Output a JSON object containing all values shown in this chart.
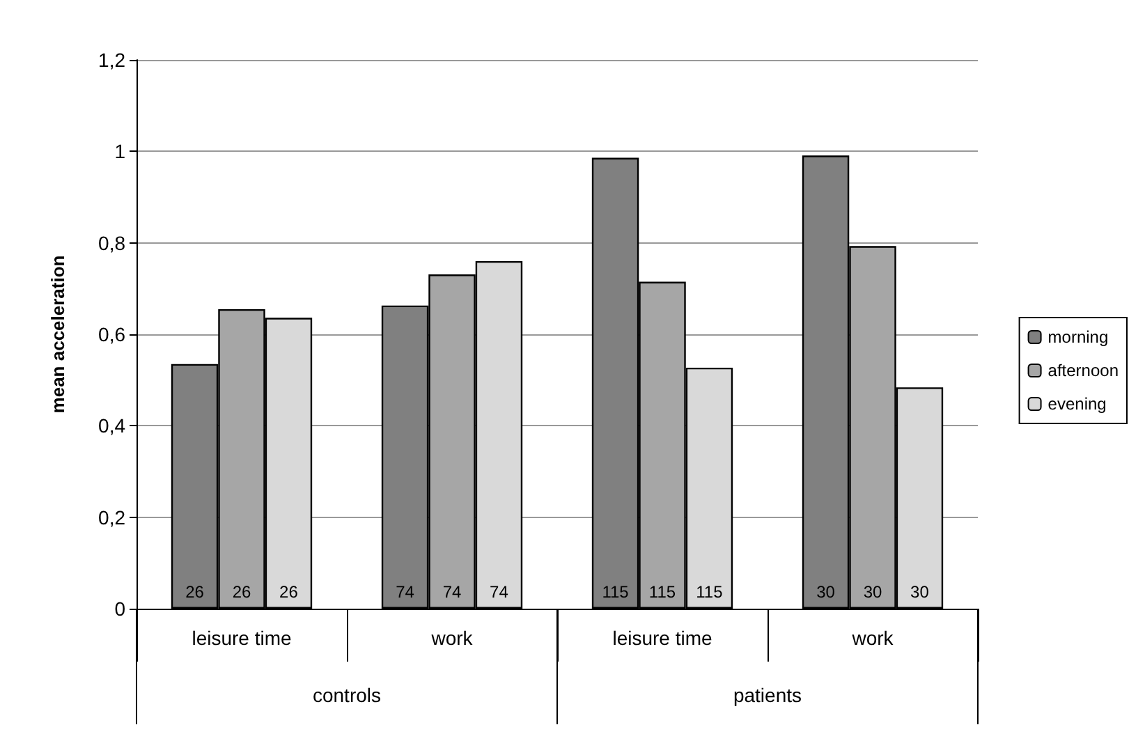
{
  "chart_data": {
    "type": "bar",
    "ylabel": "mean acceleration",
    "categories": [
      "leisure time",
      "work",
      "leisure time",
      "work"
    ],
    "annotations": [
      "controls",
      "patients",
      {
        "text": "26",
        "y": 0
      },
      {
        "text": "26",
        "y": 0
      },
      {
        "text": "26",
        "y": 0
      },
      {
        "text": "74",
        "y": 0
      },
      {
        "text": "74",
        "y": 0
      },
      {
        "text": "74",
        "y": 0
      },
      {
        "text": "115",
        "y": 0
      },
      {
        "text": "115",
        "y": 0
      },
      {
        "text": "115",
        "y": 0
      },
      {
        "text": "30",
        "y": 0
      },
      {
        "text": "30",
        "y": 0
      },
      {
        "text": "30",
        "y": 0
      }
    ],
    "series": [
      {
        "name": "morning",
        "color": "#808080",
        "values": [
          0.535,
          0.663,
          0.986,
          0.991
        ]
      },
      {
        "name": "afternoon",
        "color": "#a6a6a6",
        "values": [
          0.655,
          0.731,
          0.715,
          0.793
        ]
      },
      {
        "name": "evening",
        "color": "#d9d9d9",
        "values": [
          0.636,
          0.76,
          0.527,
          0.484
        ]
      }
    ],
    "ylim": [
      0,
      1.2
    ],
    "yticks": [
      0,
      {
        "value": 0.2,
        "label": "0,2"
      },
      {
        "value": 0.4,
        "label": "0,4"
      },
      {
        "value": 0.6,
        "label": "0,6"
      },
      {
        "value": 0.8,
        "label": "0,8"
      },
      1,
      {
        "value": 1.2,
        "label": "1,2"
      }
    ],
    "grid": "y",
    "legend": "right"
  }
}
